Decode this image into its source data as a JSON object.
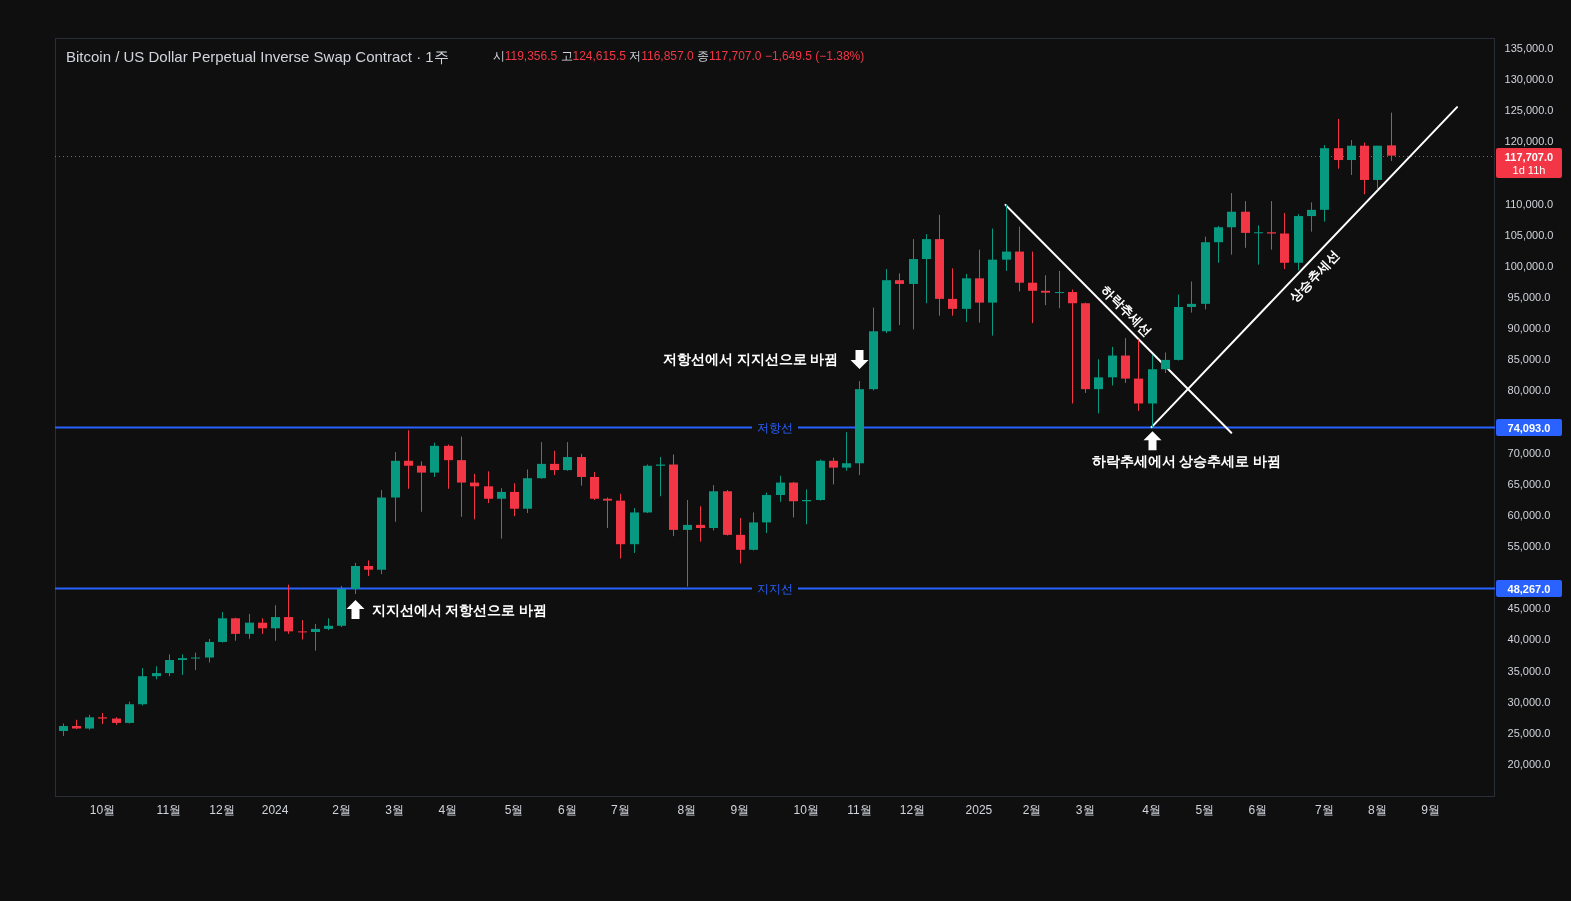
{
  "chart_data": {
    "type": "candlestick",
    "title": "Bitcoin / US Dollar Perpetual Inverse Swap Contract · 1주",
    "subtitle": "시119,356.5 고124,615.5 저116,857.0 종117,707.0 −1,649.5 (−1.38%)",
    "x": [
      "2023-09-11",
      "2023-09-18",
      "2023-09-25",
      "2023-10-02",
      "2023-10-09",
      "2023-10-16",
      "2023-10-23",
      "2023-10-30",
      "2023-11-06",
      "2023-11-13",
      "2023-11-20",
      "2023-11-27",
      "2023-12-04",
      "2023-12-11",
      "2023-12-18",
      "2023-12-25",
      "2024-01-01",
      "2024-01-08",
      "2024-01-15",
      "2024-01-22",
      "2024-01-29",
      "2024-02-05",
      "2024-02-12",
      "2024-02-19",
      "2024-02-26",
      "2024-03-04",
      "2024-03-11",
      "2024-03-18",
      "2024-03-25",
      "2024-04-01",
      "2024-04-08",
      "2024-04-15",
      "2024-04-22",
      "2024-04-29",
      "2024-05-06",
      "2024-05-13",
      "2024-05-20",
      "2024-05-27",
      "2024-06-03",
      "2024-06-10",
      "2024-06-17",
      "2024-06-24",
      "2024-07-01",
      "2024-07-08",
      "2024-07-15",
      "2024-07-22",
      "2024-07-29",
      "2024-08-05",
      "2024-08-12",
      "2024-08-19",
      "2024-08-26",
      "2024-09-02",
      "2024-09-09",
      "2024-09-16",
      "2024-09-23",
      "2024-09-30",
      "2024-10-07",
      "2024-10-14",
      "2024-10-21",
      "2024-10-28",
      "2024-11-04",
      "2024-11-11",
      "2024-11-18",
      "2024-11-25",
      "2024-12-02",
      "2024-12-09",
      "2024-12-16",
      "2024-12-23",
      "2024-12-30",
      "2025-01-06",
      "2025-01-13",
      "2025-01-20",
      "2025-01-27",
      "2025-02-03",
      "2025-02-10",
      "2025-02-17",
      "2025-02-24",
      "2025-03-03",
      "2025-03-10",
      "2025-03-17",
      "2025-03-24",
      "2025-03-31",
      "2025-04-07",
      "2025-04-14",
      "2025-04-21",
      "2025-04-28",
      "2025-05-05",
      "2025-05-12",
      "2025-05-19",
      "2025-05-26",
      "2025-06-02",
      "2025-06-09",
      "2025-06-16",
      "2025-06-23",
      "2025-06-30",
      "2025-07-07",
      "2025-07-14",
      "2025-07-21",
      "2025-07-28",
      "2025-08-04",
      "2025-08-11"
    ],
    "ohlc": [
      [
        25300,
        26500,
        24500,
        26100
      ],
      [
        26100,
        27100,
        25600,
        25700
      ],
      [
        25700,
        27900,
        25500,
        27500
      ],
      [
        27500,
        28200,
        26400,
        27300
      ],
      [
        27300,
        27500,
        26300,
        26600
      ],
      [
        26600,
        30000,
        26500,
        29600
      ],
      [
        29600,
        35400,
        29400,
        34100
      ],
      [
        34100,
        35700,
        33600,
        34600
      ],
      [
        34600,
        37600,
        34100,
        36700
      ],
      [
        36700,
        37600,
        34300,
        37000
      ],
      [
        37000,
        37900,
        35100,
        37100
      ],
      [
        37100,
        40100,
        36300,
        39600
      ],
      [
        39600,
        44400,
        39500,
        43400
      ],
      [
        43400,
        43500,
        39800,
        40900
      ],
      [
        40900,
        44100,
        40100,
        42700
      ],
      [
        42700,
        43400,
        40900,
        41800
      ],
      [
        41800,
        45500,
        39800,
        43600
      ],
      [
        43600,
        48800,
        40900,
        41300
      ],
      [
        41300,
        43100,
        40000,
        41200
      ],
      [
        41200,
        42500,
        38200,
        41700
      ],
      [
        41700,
        43400,
        41500,
        42200
      ],
      [
        42200,
        48600,
        42000,
        48100
      ],
      [
        48100,
        52300,
        47300,
        51800
      ],
      [
        51800,
        52700,
        50200,
        51200
      ],
      [
        51200,
        64000,
        50500,
        62800
      ],
      [
        62800,
        70100,
        58900,
        68700
      ],
      [
        68700,
        73600,
        64200,
        67900
      ],
      [
        67900,
        68600,
        60500,
        66800
      ],
      [
        66800,
        71600,
        66100,
        71100
      ],
      [
        71100,
        71300,
        64200,
        68800
      ],
      [
        68800,
        72600,
        59700,
        65200
      ],
      [
        65200,
        66600,
        59300,
        64600
      ],
      [
        64600,
        67000,
        61900,
        62600
      ],
      [
        62600,
        64300,
        56200,
        63700
      ],
      [
        63700,
        65100,
        59800,
        61000
      ],
      [
        61000,
        67300,
        60300,
        65900
      ],
      [
        65900,
        71700,
        65800,
        68200
      ],
      [
        68200,
        70300,
        66400,
        67200
      ],
      [
        67200,
        71700,
        67100,
        69300
      ],
      [
        69300,
        69800,
        64700,
        66100
      ],
      [
        66100,
        66900,
        62400,
        62600
      ],
      [
        62600,
        62800,
        57900,
        62300
      ],
      [
        62300,
        63400,
        53000,
        55300
      ],
      [
        55300,
        61100,
        53900,
        60400
      ],
      [
        60400,
        68100,
        60300,
        67900
      ],
      [
        67900,
        69300,
        63000,
        68100
      ],
      [
        68100,
        69700,
        56600,
        57600
      ],
      [
        57600,
        62400,
        48500,
        58400
      ],
      [
        58400,
        61400,
        55700,
        57900
      ],
      [
        57900,
        64800,
        57500,
        63800
      ],
      [
        63800,
        64000,
        56700,
        56800
      ],
      [
        56800,
        59500,
        52200,
        54400
      ],
      [
        54400,
        60400,
        54300,
        58800
      ],
      [
        58800,
        63600,
        57100,
        63200
      ],
      [
        63200,
        66300,
        62100,
        65200
      ],
      [
        65200,
        65300,
        59600,
        62200
      ],
      [
        62200,
        64100,
        58500,
        62400
      ],
      [
        62400,
        68900,
        62300,
        68700
      ],
      [
        68700,
        69200,
        64900,
        67600
      ],
      [
        67600,
        73300,
        67100,
        68300
      ],
      [
        68300,
        81500,
        66400,
        80200
      ],
      [
        80200,
        93300,
        80000,
        89500
      ],
      [
        89500,
        99500,
        89200,
        97700
      ],
      [
        97700,
        98800,
        90500,
        97100
      ],
      [
        97100,
        104300,
        89800,
        101100
      ],
      [
        101100,
        105100,
        94000,
        104300
      ],
      [
        104300,
        108200,
        92000,
        94700
      ],
      [
        94700,
        99600,
        92000,
        93100
      ],
      [
        93100,
        98700,
        91000,
        98000
      ],
      [
        98000,
        102600,
        90900,
        94100
      ],
      [
        94100,
        106000,
        88800,
        101000
      ],
      [
        101000,
        109800,
        99200,
        102300
      ],
      [
        102300,
        106300,
        95900,
        97300
      ],
      [
        97300,
        102300,
        90800,
        96000
      ],
      [
        96000,
        98500,
        93700,
        95700
      ],
      [
        95700,
        99200,
        93200,
        95800
      ],
      [
        95800,
        96200,
        77900,
        94000
      ],
      [
        94000,
        94100,
        79600,
        80200
      ],
      [
        80200,
        85000,
        76300,
        82100
      ],
      [
        82100,
        87000,
        80800,
        85600
      ],
      [
        85600,
        88400,
        81200,
        81900
      ],
      [
        81900,
        88200,
        76700,
        77900
      ],
      [
        77900,
        85700,
        74100,
        83400
      ],
      [
        83400,
        86100,
        82800,
        84900
      ],
      [
        84900,
        95400,
        84800,
        93400
      ],
      [
        93400,
        97500,
        92500,
        93900
      ],
      [
        93900,
        104700,
        93000,
        103800
      ],
      [
        103800,
        106400,
        100500,
        106200
      ],
      [
        106200,
        111700,
        101800,
        108700
      ],
      [
        108700,
        110400,
        102900,
        105300
      ],
      [
        105300,
        106500,
        100200,
        105400
      ],
      [
        105400,
        110400,
        102600,
        105200
      ],
      [
        105200,
        108500,
        99500,
        100500
      ],
      [
        100500,
        108300,
        99300,
        108000
      ],
      [
        108000,
        110200,
        105500,
        109000
      ],
      [
        109000,
        119400,
        107100,
        118900
      ],
      [
        118900,
        123600,
        115600,
        117000
      ],
      [
        117000,
        120200,
        114600,
        119300
      ],
      [
        119300,
        119800,
        111500,
        113800
      ],
      [
        113800,
        119300,
        112300,
        119300
      ],
      [
        119356.5,
        124615.5,
        116857.0,
        117707.0
      ]
    ],
    "xlim": [
      "2023-09-07",
      "2025-10-05"
    ],
    "xticks": [
      {
        "value": "2023-10-02",
        "label": "10월"
      },
      {
        "value": "2023-11-06",
        "label": "11월"
      },
      {
        "value": "2023-12-04",
        "label": "12월"
      },
      {
        "value": "2024-01-01",
        "label": "2024"
      },
      {
        "value": "2024-02-05",
        "label": "2월"
      },
      {
        "value": "2024-03-04",
        "label": "3월"
      },
      {
        "value": "2024-04-01",
        "label": "4월"
      },
      {
        "value": "2024-05-06",
        "label": "5월"
      },
      {
        "value": "2024-06-03",
        "label": "6월"
      },
      {
        "value": "2024-07-01",
        "label": "7월"
      },
      {
        "value": "2024-08-05",
        "label": "8월"
      },
      {
        "value": "2024-09-02",
        "label": "9월"
      },
      {
        "value": "2024-10-07",
        "label": "10월"
      },
      {
        "value": "2024-11-04",
        "label": "11월"
      },
      {
        "value": "2024-12-02",
        "label": "12월"
      },
      {
        "value": "2025-01-06",
        "label": "2025"
      },
      {
        "value": "2025-02-03",
        "label": "2월"
      },
      {
        "value": "2025-03-03",
        "label": "3월"
      },
      {
        "value": "2025-04-07",
        "label": "4월"
      },
      {
        "value": "2025-05-05",
        "label": "5월"
      },
      {
        "value": "2025-06-02",
        "label": "6월"
      },
      {
        "value": "2025-07-07",
        "label": "7월"
      },
      {
        "value": "2025-08-04",
        "label": "8월"
      },
      {
        "value": "2025-09-01",
        "label": "9월"
      }
    ],
    "ylim": [
      14700,
      136600
    ],
    "yticks": [
      {
        "value": 20000,
        "label": "20,000.0"
      },
      {
        "value": 25000,
        "label": "25,000.0"
      },
      {
        "value": 30000,
        "label": "30,000.0"
      },
      {
        "value": 35000,
        "label": "35,000.0"
      },
      {
        "value": 40000,
        "label": "40,000.0"
      },
      {
        "value": 45000,
        "label": "45,000.0"
      },
      {
        "value": 48267,
        "label": "48,267.0"
      },
      {
        "value": 55000,
        "label": "55,000.0"
      },
      {
        "value": 60000,
        "label": "60,000.0"
      },
      {
        "value": 65000,
        "label": "65,000.0"
      },
      {
        "value": 70000,
        "label": "70,000.0"
      },
      {
        "value": 74093,
        "label": "74,093.0"
      },
      {
        "value": 80000,
        "label": "80,000.0"
      },
      {
        "value": 85000,
        "label": "85,000.0"
      },
      {
        "value": 90000,
        "label": "90,000.0"
      },
      {
        "value": 95000,
        "label": "95,000.0"
      },
      {
        "value": 100000,
        "label": "100,000.0"
      },
      {
        "value": 105000,
        "label": "105,000.0"
      },
      {
        "value": 110000,
        "label": "110,000.0"
      },
      {
        "value": 117707,
        "label": "117,707.0"
      },
      {
        "value": 120000,
        "label": "120,000.0"
      },
      {
        "value": 125000,
        "label": "125,000.0"
      },
      {
        "value": 130000,
        "label": "130,000.0"
      },
      {
        "value": 135000,
        "label": "135,000.0"
      }
    ],
    "series": [
      {
        "type": "line",
        "name": "하락추세선",
        "color": "#ffffff",
        "x": [
          "2025-01-20",
          "2025-05-19"
        ],
        "values": [
          109800,
          73200
        ]
      },
      {
        "type": "line",
        "name": "상승추세선",
        "color": "#ffffff",
        "x": [
          "2025-04-07",
          "2025-09-15"
        ],
        "values": [
          74100,
          125500
        ]
      }
    ],
    "ref_lines": [
      {
        "axis": "y",
        "value": 74093,
        "label": "저항선",
        "color": "#2962ff",
        "line_style": "solid"
      },
      {
        "axis": "y",
        "value": 48267,
        "label": "지지선",
        "color": "#2962ff",
        "line_style": "solid"
      },
      {
        "axis": "y",
        "value": 117707,
        "label": "1d 11h",
        "color": "#f23645",
        "line_style": "dotted"
      }
    ],
    "annotations": [
      {
        "text": "저항선에서 지지선으로 바뀜",
        "x": "2024-11-04",
        "y": 81500
      },
      {
        "text": "지지선에서 저항선으로 바뀜",
        "x": "2024-02-12",
        "y": 47300
      },
      {
        "text": "하락추세에서 상승추세로 바뀜",
        "x": "2025-04-07",
        "y": 74100
      }
    ]
  }
}
